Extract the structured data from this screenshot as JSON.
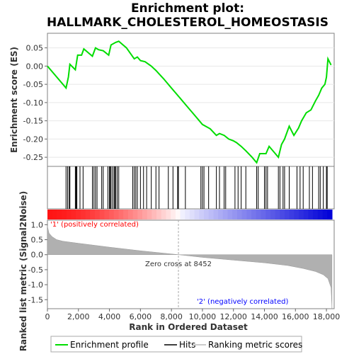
{
  "chart_data": {
    "type": "line",
    "title_lines": [
      "Enrichment plot:",
      "HALLMARK_CHOLESTEROL_HOMEOSTASIS"
    ],
    "top_panel": {
      "ylabel": "Enrichment score (ES)",
      "ylim": [
        -0.275,
        0.09
      ],
      "yticks": [
        0.05,
        0.0,
        -0.05,
        -0.1,
        -0.15,
        -0.2,
        -0.25
      ],
      "ytick_labels": [
        "0.05",
        "0.00",
        "-0.05",
        "-0.10",
        "-0.15",
        "-0.20",
        "-0.25"
      ],
      "series": [
        {
          "name": "Enrichment profile",
          "color": "#00ee00",
          "x": [
            0,
            1200,
            1350,
            1450,
            1800,
            1950,
            2200,
            2350,
            2900,
            3100,
            3300,
            3600,
            3950,
            4100,
            4400,
            4600,
            5100,
            5600,
            5800,
            6000,
            6300,
            6700,
            7000,
            7500,
            8000,
            8500,
            9000,
            9500,
            10000,
            10200,
            10500,
            10900,
            11100,
            11400,
            11700,
            12000,
            12200,
            12500,
            12800,
            13200,
            13500,
            13700,
            14100,
            14300,
            14900,
            15100,
            15300,
            15600,
            15900,
            16200,
            16400,
            16700,
            17000,
            17300,
            17500,
            17700,
            17900,
            18000,
            18100,
            18300
          ],
          "y": [
            0.0,
            -0.06,
            -0.03,
            0.005,
            -0.01,
            0.03,
            0.03,
            0.047,
            0.027,
            0.05,
            0.045,
            0.042,
            0.03,
            0.058,
            0.065,
            0.068,
            0.05,
            0.02,
            0.025,
            0.015,
            0.012,
            0.0,
            -0.012,
            -0.035,
            -0.06,
            -0.085,
            -0.11,
            -0.135,
            -0.16,
            -0.165,
            -0.172,
            -0.19,
            -0.185,
            -0.19,
            -0.2,
            -0.205,
            -0.21,
            -0.22,
            -0.232,
            -0.25,
            -0.265,
            -0.24,
            -0.24,
            -0.22,
            -0.25,
            -0.215,
            -0.2,
            -0.165,
            -0.19,
            -0.17,
            -0.15,
            -0.128,
            -0.12,
            -0.095,
            -0.08,
            -0.06,
            -0.05,
            -0.03,
            0.02,
            0.003
          ]
        }
      ]
    },
    "hits_panel": {
      "legend": "Hits",
      "hit_positions": [
        1200,
        1300,
        1400,
        1450,
        1800,
        1850,
        1900,
        2100,
        2300,
        2900,
        3000,
        3100,
        3200,
        3500,
        3600,
        3900,
        4000,
        4050,
        4100,
        4200,
        4300,
        4350,
        4400,
        4500,
        4600,
        5500,
        5600,
        5700,
        5800,
        6000,
        6200,
        6400,
        6700,
        7000,
        7200,
        7800,
        8100,
        8400,
        8450,
        8900,
        9900,
        10000,
        10100,
        10400,
        10900,
        11100,
        11400,
        11500,
        12100,
        12300,
        12500,
        12800,
        13500,
        13600,
        14000,
        14100,
        14200,
        14900,
        15000,
        15200,
        15300,
        15600,
        16100,
        16300,
        16500,
        16900,
        17100,
        17500,
        17600,
        17800,
        18000,
        18050
      ]
    },
    "ranking_panel": {
      "ylabel": "Ranked list metric (Signal2Noise)",
      "ylim": [
        -1.8,
        1.15
      ],
      "yticks": [
        1.0,
        0.5,
        0.0,
        -0.5,
        -1.0,
        -1.5
      ],
      "ytick_labels": [
        "1.0",
        "0.5",
        "0.0",
        "-0.5",
        "-1.0",
        "-1.5"
      ],
      "profile_x": [
        0,
        100,
        300,
        600,
        1000,
        2000,
        4000,
        6000,
        8452,
        10000,
        12000,
        14000,
        15500,
        16500,
        17300,
        17800,
        18100,
        18300,
        18360
      ],
      "profile_y": [
        0.95,
        0.72,
        0.6,
        0.5,
        0.45,
        0.38,
        0.25,
        0.13,
        0.0,
        -0.09,
        -0.18,
        -0.27,
        -0.36,
        -0.46,
        -0.56,
        -0.67,
        -0.8,
        -1.1,
        -1.8
      ],
      "zero_cross_label": "Zero cross at 8452",
      "positive_label": "'1' (positively correlated)",
      "negative_label": "'2' (negatively correlated)",
      "positive_color": "#ff0000",
      "negative_color": "#0000ff"
    },
    "xaxis": {
      "xlabel": "Rank in Ordered Dataset",
      "xlim": [
        0,
        18500
      ],
      "xticks": [
        0,
        2000,
        4000,
        6000,
        8000,
        10000,
        12000,
        14000,
        16000,
        18000
      ],
      "xtick_labels": [
        "0",
        "2,000",
        "4,000",
        "6,000",
        "8,000",
        "10,000",
        "12,000",
        "14,000",
        "16,000",
        "18,000"
      ]
    },
    "legend": {
      "placement": "bottom",
      "items": [
        "Enrichment profile",
        "Hits",
        "Ranking metric scores"
      ]
    }
  }
}
